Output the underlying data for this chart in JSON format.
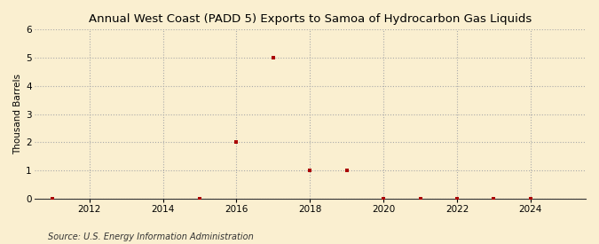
{
  "title": "Annual West Coast (PADD 5) Exports to Samoa of Hydrocarbon Gas Liquids",
  "ylabel": "Thousand Barrels",
  "source": "Source: U.S. Energy Information Administration",
  "background_color": "#faefd0",
  "data_color": "#aa0000",
  "xlim": [
    2010.5,
    2025.5
  ],
  "ylim": [
    0,
    6
  ],
  "yticks": [
    0,
    1,
    2,
    3,
    4,
    5,
    6
  ],
  "xticks": [
    2012,
    2014,
    2016,
    2018,
    2020,
    2022,
    2024
  ],
  "data_points": [
    [
      2011,
      0
    ],
    [
      2015,
      0
    ],
    [
      2016,
      2
    ],
    [
      2017,
      5
    ],
    [
      2018,
      1
    ],
    [
      2019,
      1
    ],
    [
      2020,
      0
    ],
    [
      2021,
      0
    ],
    [
      2022,
      0
    ],
    [
      2023,
      0
    ],
    [
      2024,
      0
    ]
  ]
}
